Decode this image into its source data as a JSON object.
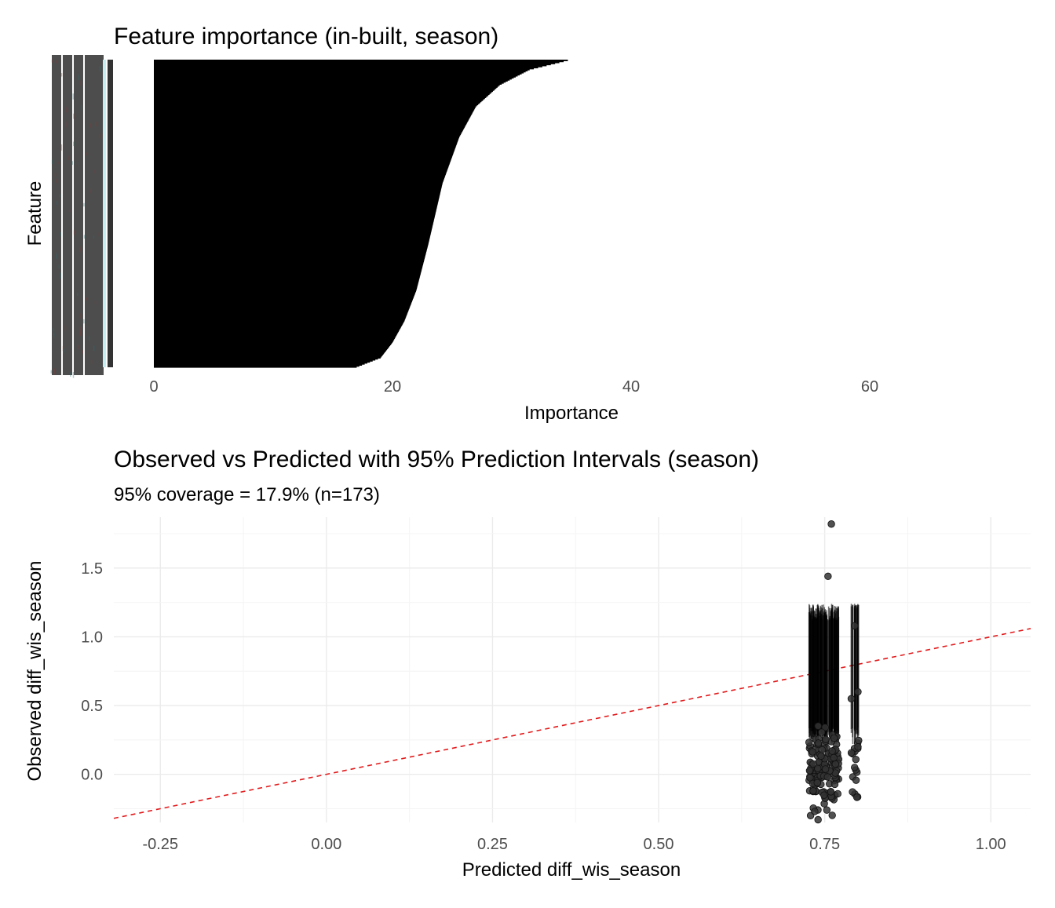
{
  "chart_data": [
    {
      "type": "bar",
      "orientation": "horizontal",
      "title": "Feature importance (in-built, season)",
      "xlabel": "Importance",
      "ylabel": "Feature",
      "xlim": [
        -3,
        72
      ],
      "x_ticks": [
        0,
        20,
        40,
        60
      ],
      "n_features_approx": 300,
      "importance_distribution": {
        "description_of_shape": "sorted ascending from bottom to top",
        "quantiles": [
          0.0,
          0.03,
          0.08,
          0.15,
          0.25,
          0.4,
          0.5,
          0.6,
          0.75,
          0.85,
          0.92,
          0.97,
          1.0
        ],
        "values": [
          17,
          19,
          20,
          21,
          22,
          23,
          23.6,
          24.2,
          25.6,
          27,
          29,
          31.5,
          34.7
        ]
      },
      "bar_color": "#000000",
      "grid": false
    },
    {
      "type": "scatter",
      "title": "Observed vs Predicted with 95% Prediction Intervals (season)",
      "subtitle": "95% coverage = 17.9% (n=173)",
      "xlabel": "Predicted diff_wis_season",
      "ylabel": "Observed diff_wis_season",
      "xlim": [
        -0.32,
        1.06
      ],
      "ylim": [
        -0.35,
        1.87
      ],
      "x_ticks": [
        -0.25,
        0.0,
        0.25,
        0.5,
        0.75,
        1.0
      ],
      "x_tick_labels": [
        "-0.25",
        "0.00",
        "0.25",
        "0.50",
        "0.75",
        "1.00"
      ],
      "y_ticks": [
        0.0,
        0.5,
        1.0,
        1.5
      ],
      "y_tick_labels": [
        "0.0",
        "0.5",
        "1.0",
        "1.5"
      ],
      "reference_line": {
        "slope": 1,
        "intercept": 0,
        "color": "#e31a1c",
        "style": "dashed"
      },
      "n": 173,
      "interval_color": "#000000",
      "point_color": "#333333",
      "points_highlighted": [
        {
          "x": 0.76,
          "y": 1.82
        },
        {
          "x": 0.755,
          "y": 1.44
        },
        {
          "x": 0.795,
          "y": 1.08
        },
        {
          "x": 0.8,
          "y": 0.6
        },
        {
          "x": 0.79,
          "y": 0.55
        },
        {
          "x": 0.795,
          "y": 0.05
        },
        {
          "x": 0.735,
          "y": -0.27
        },
        {
          "x": 0.74,
          "y": -0.33
        }
      ],
      "grid": true
    }
  ]
}
